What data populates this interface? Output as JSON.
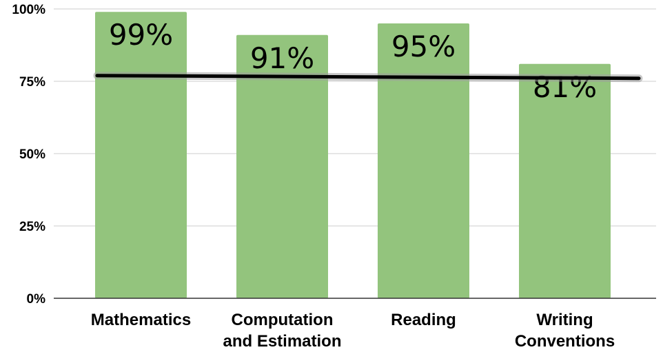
{
  "chart_data": {
    "type": "bar",
    "title": "",
    "xlabel": "",
    "ylabel": "",
    "categories": [
      [
        "Mathematics"
      ],
      [
        "Computation",
        "and Estimation"
      ],
      [
        "Reading"
      ],
      [
        "Writing",
        "Conventions"
      ]
    ],
    "values": [
      99,
      91,
      95,
      81
    ],
    "data_labels": [
      "99%",
      "91%",
      "95%",
      "81%"
    ],
    "ylim": [
      0,
      100
    ],
    "yticks": [
      0,
      25,
      50,
      75,
      100
    ],
    "ytick_labels": [
      "0%",
      "25%",
      "50%",
      "75%",
      "100%"
    ],
    "reference_line": {
      "value": 76.5
    },
    "grid": true,
    "legend": "none",
    "colors": {
      "bar": "#93c47d",
      "reference_line": "#000000",
      "grid": "#cccccc",
      "axis": "#333333",
      "text": "#000000"
    }
  }
}
